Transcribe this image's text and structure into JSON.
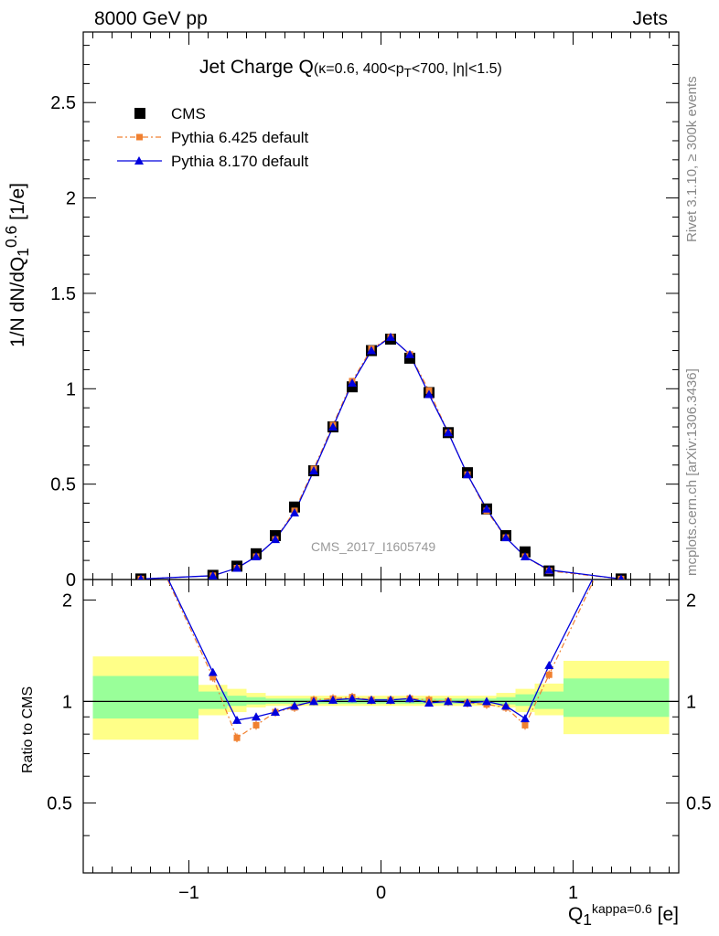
{
  "header": {
    "left": "8000 GeV pp",
    "right": "Jets"
  },
  "side_labels": {
    "rivet": "Rivet 3.1.10, ≥ 300k events",
    "mcplots": "mcplots.cern.ch [arXiv:1306.3436]"
  },
  "watermark": "CMS_2017_I1605749",
  "title": {
    "main": "Jet Charge Q",
    "sub": "(κ=0.6, 400<p",
    "sub_t": "T",
    "sub_end": "<700, |η|<1.5)"
  },
  "axes": {
    "ylabel_main": "1/N dN/dQ",
    "ylabel_sup": "0.6",
    "ylabel_sub": "1",
    "ylabel_unit": " [1/e]",
    "ylabel_ratio": "Ratio to CMS",
    "xlabel": "Q",
    "xlabel_sup": "kappa=0.6",
    "xlabel_sub": "1",
    "xlabel_unit": " [e]"
  },
  "colors": {
    "cms": "#000000",
    "pythia6": "#f08030",
    "pythia8": "#0000dd",
    "band_inner": "#99ff99",
    "band_outer": "#ffff88"
  },
  "chart_data": {
    "type": "scatter",
    "x": [
      -1.25,
      -0.875,
      -0.75,
      -0.65,
      -0.55,
      -0.45,
      -0.35,
      -0.25,
      -0.15,
      -0.05,
      0.05,
      0.15,
      0.25,
      0.35,
      0.45,
      0.55,
      0.65,
      0.75,
      0.875,
      1.25
    ],
    "xlim": [
      -1.55,
      1.55
    ],
    "ylim": [
      0,
      2.87
    ],
    "ratio_ylim": [
      0.31,
      2.3
    ],
    "xticks": [
      "−1",
      "0",
      "1"
    ],
    "yticks_main": [
      "0",
      "0.5",
      "1",
      "1.5",
      "2",
      "2.5"
    ],
    "yticks_ratio": [
      "0.5",
      "1",
      "2"
    ],
    "legend": [
      {
        "name": "CMS",
        "marker": "square"
      },
      {
        "name": "Pythia 6.425 default",
        "marker": "square-dashed"
      },
      {
        "name": "Pythia 8.170 default",
        "marker": "triangle"
      }
    ],
    "series": [
      {
        "name": "CMS",
        "values": [
          0.003,
          0.022,
          0.07,
          0.135,
          0.23,
          0.38,
          0.57,
          0.8,
          1.01,
          1.2,
          1.26,
          1.16,
          0.98,
          0.77,
          0.56,
          0.37,
          0.23,
          0.145,
          0.045,
          0.003
        ]
      },
      {
        "name": "Pythia 6.425 default",
        "values": [
          0.003,
          0.02,
          0.06,
          0.12,
          0.21,
          0.36,
          0.58,
          0.81,
          1.04,
          1.21,
          1.27,
          1.18,
          0.99,
          0.77,
          0.55,
          0.36,
          0.22,
          0.12,
          0.045,
          0.003
        ]
      },
      {
        "name": "Pythia 8.170 default",
        "values": [
          0.003,
          0.02,
          0.06,
          0.12,
          0.21,
          0.35,
          0.57,
          0.8,
          1.03,
          1.2,
          1.27,
          1.18,
          0.97,
          0.77,
          0.55,
          0.37,
          0.22,
          0.12,
          0.05,
          0.003
        ]
      }
    ],
    "ratio": {
      "pythia6": [
        3.4,
        1.18,
        0.78,
        0.85,
        0.93,
        0.96,
        1.01,
        1.02,
        1.03,
        1.01,
        1.01,
        1.02,
        1.01,
        1.0,
        0.99,
        0.98,
        0.96,
        0.85,
        1.2,
        3.4
      ],
      "pythia8": [
        3.4,
        1.22,
        0.88,
        0.9,
        0.93,
        0.97,
        1.0,
        1.01,
        1.02,
        1.01,
        1.01,
        1.02,
        0.99,
        1.0,
        0.99,
        1.0,
        0.97,
        0.89,
        1.28,
        3.4
      ],
      "bands": [
        {
          "x0": -1.5,
          "x1": -0.95,
          "inner": [
            0.89,
            1.19
          ],
          "outer": [
            0.77,
            1.36
          ]
        },
        {
          "x0": -0.95,
          "x1": -0.8,
          "inner": [
            0.95,
            1.07
          ],
          "outer": [
            0.91,
            1.12
          ]
        },
        {
          "x0": -0.8,
          "x1": -0.7,
          "inner": [
            0.97,
            1.04
          ],
          "outer": [
            0.93,
            1.09
          ]
        },
        {
          "x0": -0.7,
          "x1": -0.6,
          "inner": [
            0.98,
            1.03
          ],
          "outer": [
            0.96,
            1.06
          ]
        },
        {
          "x0": -0.6,
          "x1": 0.6,
          "inner": [
            0.985,
            1.02
          ],
          "outer": [
            0.97,
            1.04
          ]
        },
        {
          "x0": 0.6,
          "x1": 0.7,
          "inner": [
            0.98,
            1.03
          ],
          "outer": [
            0.96,
            1.06
          ]
        },
        {
          "x0": 0.7,
          "x1": 0.8,
          "inner": [
            0.97,
            1.05
          ],
          "outer": [
            0.93,
            1.09
          ]
        },
        {
          "x0": 0.8,
          "x1": 0.95,
          "inner": [
            0.95,
            1.07
          ],
          "outer": [
            0.91,
            1.13
          ]
        },
        {
          "x0": 0.95,
          "x1": 1.5,
          "inner": [
            0.9,
            1.17
          ],
          "outer": [
            0.8,
            1.32
          ]
        }
      ]
    }
  }
}
